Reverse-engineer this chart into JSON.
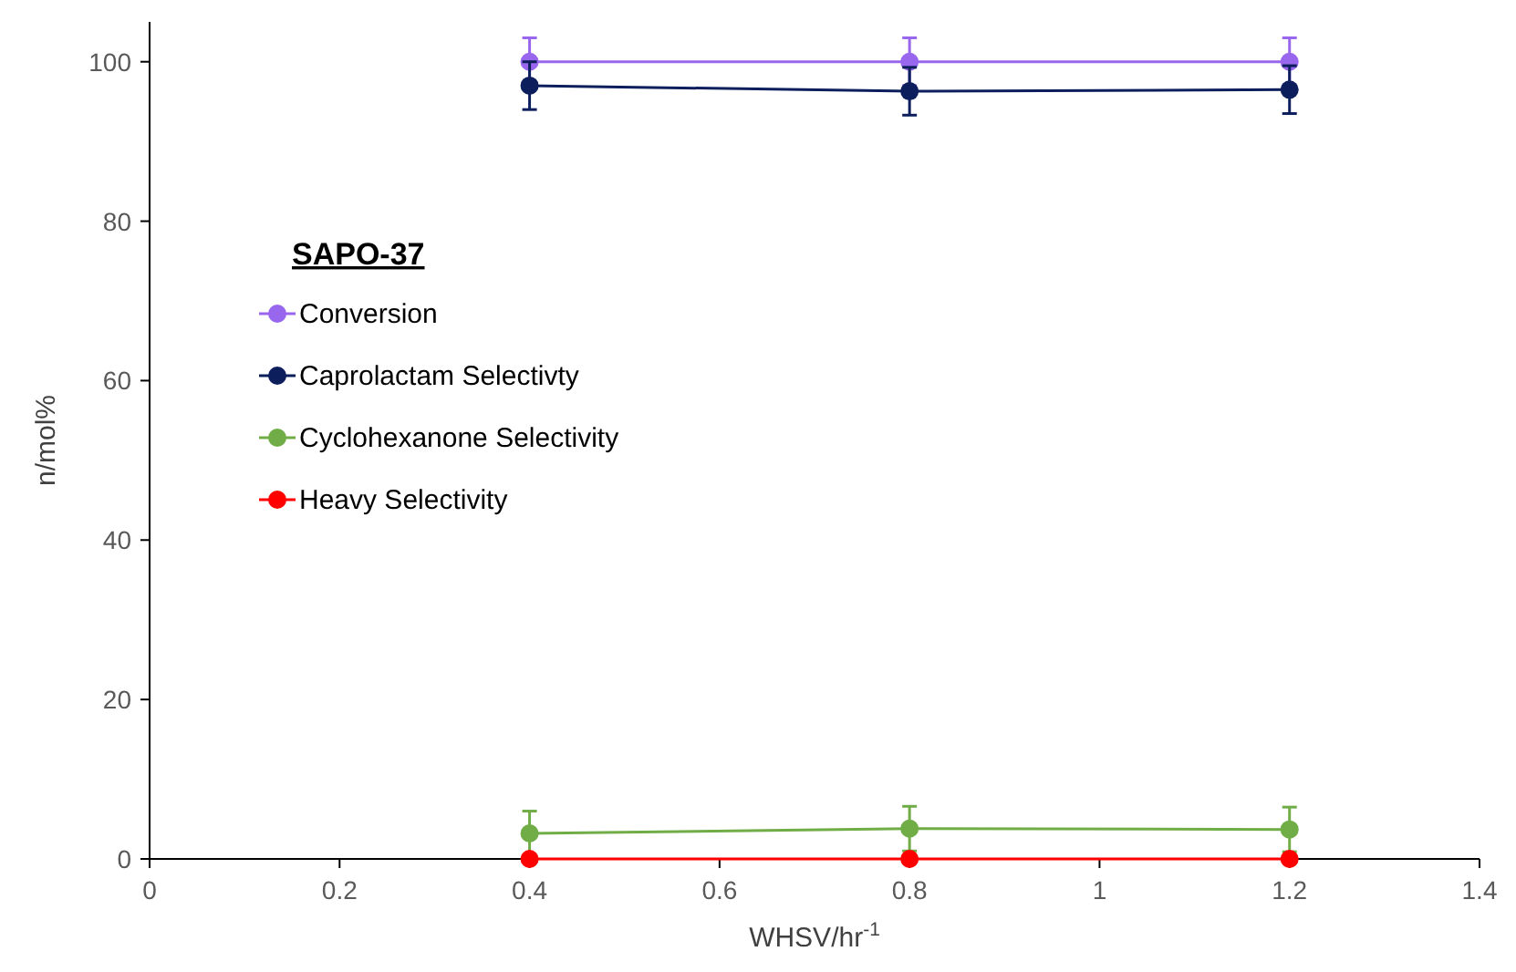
{
  "chart_data": {
    "type": "line",
    "xlabel": "WHSV/hr$^{-1}$",
    "ylabel": "n/mol%",
    "legend_title": "SAPO-37",
    "x": [
      0.4,
      0.8,
      1.2
    ],
    "series": [
      {
        "name": "Conversion",
        "color": "#9966ee",
        "values": [
          100,
          100,
          100
        ],
        "errors": [
          3,
          3,
          3
        ]
      },
      {
        "name": "Caprolactam Selectivty",
        "color": "#0c1f5c",
        "values": [
          97,
          96.3,
          96.5
        ],
        "errors": [
          3,
          3,
          3
        ]
      },
      {
        "name": "Cyclohexanone Selectivity",
        "color": "#70ad47",
        "values": [
          3.2,
          3.8,
          3.7
        ],
        "errors": [
          2.8,
          2.8,
          2.8
        ]
      },
      {
        "name": "Heavy Selectivity",
        "color": "#ff0000",
        "values": [
          0,
          0,
          0
        ]
      }
    ],
    "xlim": [
      0,
      1.4
    ],
    "xticks": [
      0,
      0.2,
      0.4,
      0.6,
      0.8,
      1,
      1.2,
      1.4
    ],
    "ylim": [
      0,
      105
    ],
    "yticks": [
      0,
      20,
      40,
      60,
      80,
      100
    ],
    "grid": false,
    "legend": "left",
    "marker": "circle",
    "line_style": "solid"
  }
}
